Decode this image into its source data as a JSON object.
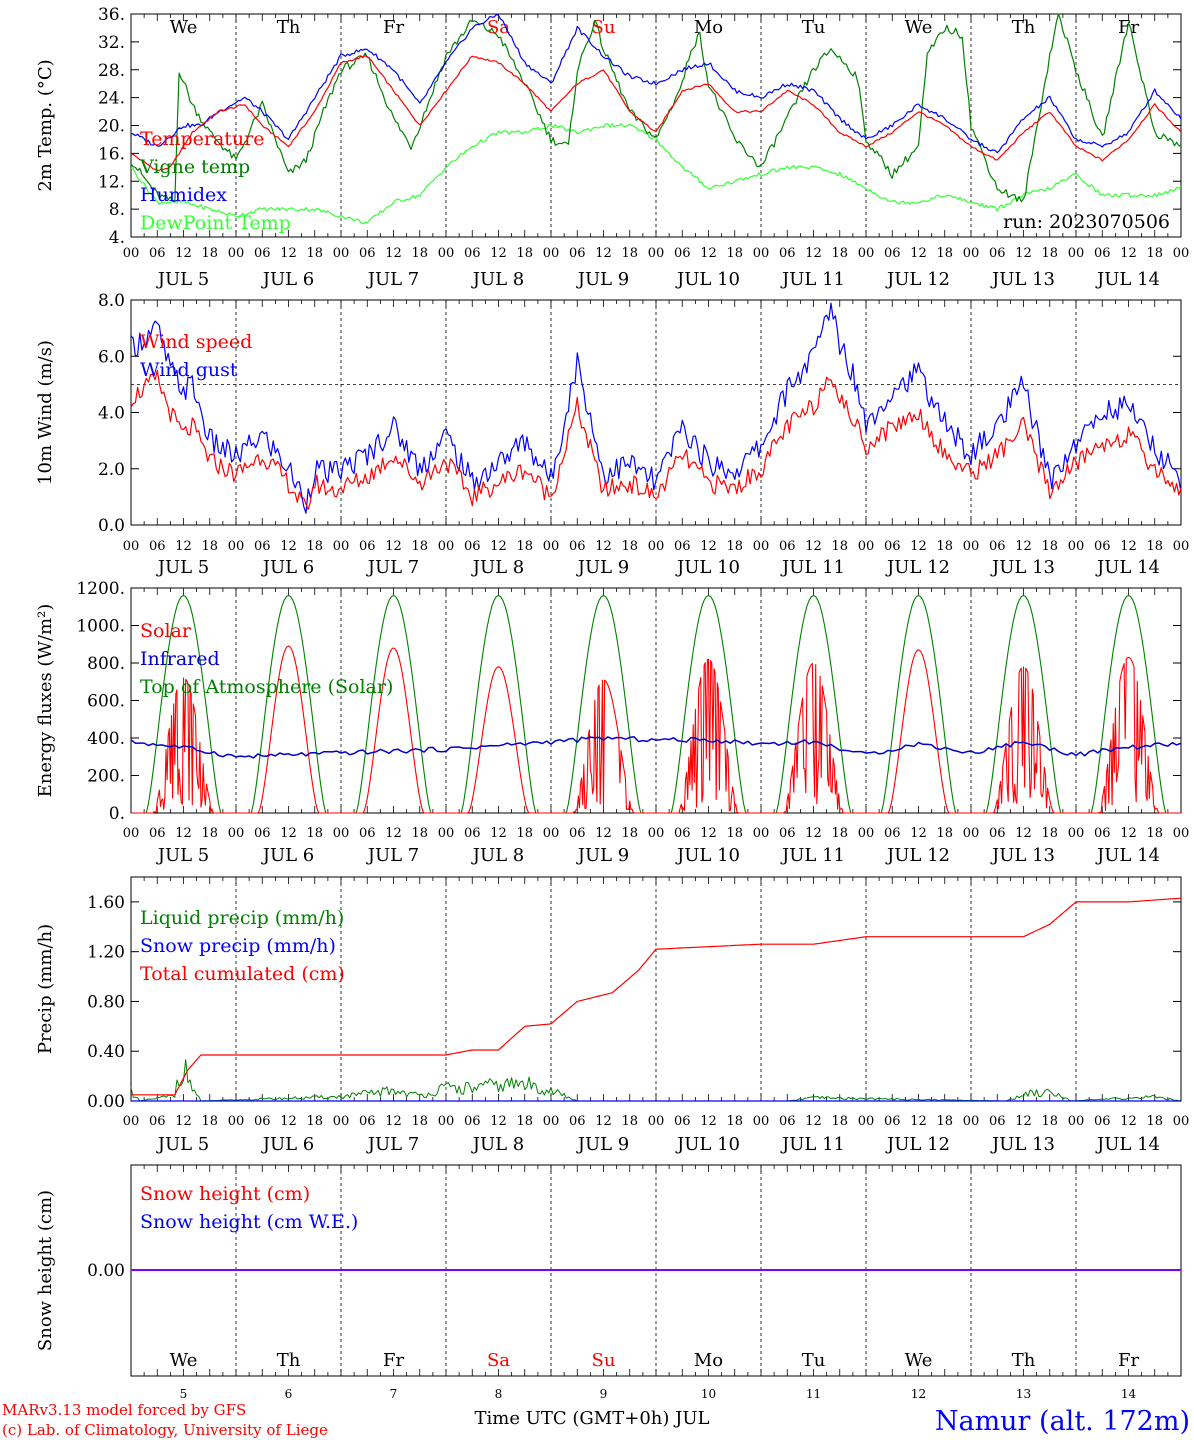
{
  "colors": {
    "red": "#ff0000",
    "green": "#00aa00",
    "darkgreen": "#008000",
    "lightgreen": "#33ff33",
    "blue": "#0000ff",
    "navy": "#0000cc",
    "purple": "#7f00ff",
    "black": "#000000"
  },
  "time_axis": {
    "hour_labels": [
      "00",
      "06",
      "12",
      "18"
    ],
    "final_hour": "00",
    "date_labels": [
      "JUL  5",
      "JUL  6",
      "JUL  7",
      "JUL  8",
      "JUL  9",
      "JUL 10",
      "JUL 11",
      "JUL 12",
      "JUL 13",
      "JUL 14"
    ],
    "weekdays": [
      "We",
      "Th",
      "Fr",
      "Sa",
      "Su",
      "Mo",
      "Tu",
      "We",
      "Th",
      "Fr"
    ],
    "weekend_days": [
      "Sa",
      "Su"
    ],
    "day_numbers": [
      "5",
      "6",
      "7",
      "8",
      "9",
      "10",
      "11",
      "12",
      "13",
      "14"
    ],
    "xlabel": "Time UTC (GMT+0h) JUL"
  },
  "footer": {
    "credit_line1": "MARv3.13 model forced by GFS",
    "credit_line2": "(c) Lab. of Climatology, University of Liege",
    "station": "Namur (alt. 172m)"
  },
  "chart_data": [
    {
      "type": "line",
      "ylabel": "2m Temp. (°C)",
      "ylim": [
        4,
        36
      ],
      "yticks": [
        "4.",
        "8.",
        "12.",
        "16.",
        "20.",
        "24.",
        "28.",
        "32.",
        "36."
      ],
      "run_label": "run: 2023070506",
      "x_unit": "hours from JUL 5 00 UTC",
      "series": [
        {
          "name": "Temperature",
          "color": "#ff0000",
          "x": [
            0,
            6,
            9,
            14,
            20,
            26,
            30,
            36,
            42,
            48,
            54,
            60,
            66,
            72,
            78,
            84,
            90,
            96,
            102,
            108,
            114,
            120,
            126,
            132,
            138,
            144,
            150,
            156,
            162,
            168,
            174,
            180,
            186,
            192,
            198,
            204,
            210,
            216,
            222,
            228,
            234,
            240
          ],
          "y": [
            16,
            13.5,
            14,
            19,
            22,
            23,
            20,
            17,
            22,
            29,
            30,
            25,
            20,
            25,
            30,
            29,
            26,
            22,
            26,
            28,
            22,
            19,
            25,
            26,
            22,
            22,
            25,
            23,
            19,
            17,
            19,
            22,
            20,
            17,
            15,
            19,
            22,
            17,
            15,
            18,
            23,
            19
          ]
        },
        {
          "name": "Vigne temp",
          "color": "#008000",
          "x": [
            0,
            6,
            10,
            11,
            14,
            18,
            24,
            30,
            36,
            40,
            44,
            48,
            54,
            60,
            64,
            66,
            72,
            78,
            84,
            90,
            96,
            100,
            102,
            106,
            108,
            114,
            120,
            126,
            128,
            130,
            132,
            138,
            144,
            150,
            156,
            160,
            166,
            168,
            174,
            180,
            182,
            186,
            190,
            192,
            198,
            204,
            210,
            212,
            216,
            222,
            228,
            234,
            240
          ],
          "y": [
            15,
            10,
            9,
            28,
            23,
            19,
            15,
            23,
            13,
            15,
            22,
            28,
            30,
            21,
            17,
            20,
            30,
            35,
            33,
            26,
            18,
            17,
            28,
            35,
            31,
            22,
            18,
            26,
            31,
            33,
            26,
            18,
            14,
            21,
            28,
            31,
            27,
            18,
            13,
            17,
            30,
            34,
            33,
            20,
            11,
            9,
            30,
            36,
            28,
            18,
            35,
            19,
            17
          ]
        },
        {
          "name": "Humidex",
          "color": "#0000ff",
          "x": [
            0,
            6,
            12,
            16,
            20,
            26,
            30,
            36,
            42,
            48,
            54,
            60,
            66,
            72,
            78,
            84,
            90,
            96,
            102,
            108,
            114,
            120,
            126,
            132,
            138,
            144,
            150,
            156,
            162,
            168,
            174,
            180,
            186,
            192,
            198,
            204,
            210,
            216,
            222,
            228,
            234,
            240
          ],
          "y": [
            19,
            17,
            20,
            20,
            22,
            24,
            22,
            18,
            24,
            30,
            31,
            28,
            23,
            29,
            34,
            36,
            29,
            26,
            34,
            30,
            27,
            26,
            28,
            29,
            25,
            24,
            26,
            25,
            21,
            18,
            20,
            23,
            21,
            18,
            16,
            21,
            24,
            18,
            17,
            19,
            25,
            21
          ]
        },
        {
          "name": "DewPoint Temp",
          "color": "#33ff33",
          "x": [
            0,
            6,
            12,
            18,
            24,
            30,
            36,
            42,
            48,
            54,
            60,
            66,
            72,
            78,
            84,
            90,
            96,
            102,
            108,
            114,
            120,
            126,
            132,
            138,
            144,
            150,
            156,
            162,
            168,
            174,
            180,
            186,
            192,
            198,
            204,
            210,
            216,
            222,
            228,
            234,
            240
          ],
          "y": [
            14,
            9,
            9,
            8,
            7,
            8,
            8,
            8,
            7,
            6,
            9,
            10,
            14,
            17,
            19,
            19,
            20,
            19,
            20,
            20,
            18,
            14,
            11,
            12,
            13,
            14,
            14,
            13,
            11,
            9,
            9,
            10,
            9,
            8,
            10,
            11,
            13,
            10,
            10,
            10,
            11
          ]
        }
      ]
    },
    {
      "type": "line",
      "ylabel": "10m Wind (m/s)",
      "ylim": [
        0,
        8
      ],
      "yticks": [
        "0.0",
        "2.0",
        "4.0",
        "6.0",
        "8.0"
      ],
      "reference_line": 5,
      "series": [
        {
          "name": "Wind speed",
          "color": "#ff0000",
          "x": [
            0,
            6,
            9,
            12,
            14,
            18,
            24,
            30,
            36,
            40,
            42,
            46,
            54,
            60,
            66,
            72,
            78,
            84,
            90,
            96,
            102,
            108,
            114,
            120,
            126,
            132,
            138,
            144,
            150,
            156,
            160,
            162,
            166,
            168,
            174,
            180,
            186,
            192,
            198,
            204,
            210,
            216,
            222,
            228,
            234,
            240
          ],
          "y": [
            4.5,
            5.2,
            4.0,
            3.2,
            3.5,
            2.3,
            1.8,
            2.5,
            1.5,
            0.5,
            1.5,
            1.2,
            1.7,
            2.5,
            1.5,
            2.3,
            1.0,
            1.5,
            2.0,
            1.0,
            4.2,
            1.2,
            1.5,
            1.0,
            2.5,
            1.5,
            1.3,
            2.0,
            3.5,
            4.2,
            5.5,
            4.5,
            3.5,
            2.8,
            3.5,
            4.0,
            2.5,
            1.8,
            2.5,
            3.5,
            1.2,
            2.2,
            2.9,
            3.2,
            2.0,
            1.2
          ]
        },
        {
          "name": "Wind gust",
          "color": "#0000ff",
          "x": [
            0,
            6,
            9,
            12,
            14,
            18,
            24,
            30,
            36,
            40,
            42,
            46,
            54,
            60,
            66,
            72,
            78,
            84,
            90,
            96,
            102,
            108,
            114,
            120,
            126,
            132,
            138,
            144,
            150,
            156,
            160,
            162,
            166,
            168,
            174,
            180,
            186,
            192,
            198,
            204,
            210,
            216,
            222,
            228,
            234,
            240
          ],
          "y": [
            6.3,
            7.0,
            5.5,
            4.8,
            5.0,
            3.0,
            2.4,
            3.2,
            2.0,
            0.8,
            2.0,
            1.8,
            2.5,
            3.5,
            2.0,
            3.2,
            1.5,
            2.2,
            3.0,
            1.6,
            5.8,
            1.8,
            2.2,
            1.5,
            3.5,
            2.2,
            1.9,
            2.8,
            4.8,
            6.0,
            7.8,
            6.5,
            5.0,
            3.6,
            4.8,
            5.4,
            3.6,
            2.5,
            3.5,
            5.0,
            1.6,
            2.9,
            4.0,
            4.3,
            2.7,
            1.6
          ]
        }
      ]
    },
    {
      "type": "line",
      "ylabel": "Energy fluxes (W/m²)",
      "ylim": [
        0,
        1200
      ],
      "yticks": [
        "0.",
        "200.",
        "400.",
        "600.",
        "800.",
        "1000.",
        "1200."
      ],
      "series": [
        {
          "name": "Solar",
          "color": "#ff0000",
          "day_peaks": [
            720,
            890,
            880,
            780,
            710,
            820,
            800,
            870,
            780,
            830
          ],
          "cloudy_days": [
            "JUL 5",
            "JUL 9",
            "JUL 10",
            "JUL 11",
            "JUL 13",
            "JUL 14"
          ]
        },
        {
          "name": "Infrared",
          "color": "#0000cc",
          "x": [
            0,
            12,
            24,
            36,
            48,
            60,
            72,
            84,
            96,
            108,
            120,
            132,
            144,
            156,
            168,
            180,
            192,
            204,
            216,
            228,
            240
          ],
          "y": [
            380,
            350,
            300,
            310,
            320,
            330,
            340,
            360,
            380,
            400,
            390,
            390,
            370,
            380,
            310,
            370,
            320,
            380,
            310,
            350,
            370
          ]
        },
        {
          "name": "Top of Atmosphere (Solar)",
          "color": "#008000",
          "peak": 1160
        }
      ]
    },
    {
      "type": "line",
      "ylabel": "Precip (mm/h)",
      "ylim": [
        0,
        1.8
      ],
      "yticks": [
        "0.00",
        "0.40",
        "0.80",
        "1.20",
        "1.60"
      ],
      "series": [
        {
          "name": "Liquid precip (mm/h)",
          "color": "#008000",
          "x": [
            0,
            1,
            2,
            10,
            11,
            13,
            14,
            16,
            48,
            54,
            60,
            66,
            72,
            78,
            84,
            90,
            96,
            102,
            120,
            150,
            156,
            200,
            204,
            210,
            215,
            234,
            240
          ],
          "y": [
            0.1,
            0.05,
            0,
            0.05,
            0.3,
            0.25,
            0.12,
            0,
            0.04,
            0.07,
            0.1,
            0.05,
            0.12,
            0.12,
            0.15,
            0.16,
            0.1,
            0,
            0,
            0,
            0.03,
            0,
            0.06,
            0.1,
            0,
            0.04,
            0
          ]
        },
        {
          "name": "Snow precip (mm/h)",
          "color": "#0000ff",
          "x": [
            0,
            240
          ],
          "y": [
            0,
            0
          ]
        },
        {
          "name": "Total cumulated (cm)",
          "color": "#ff0000",
          "x": [
            0,
            10,
            13,
            16,
            24,
            48,
            72,
            78,
            84,
            90,
            96,
            102,
            110,
            116,
            120,
            144,
            156,
            168,
            192,
            204,
            210,
            216,
            228,
            240
          ],
          "y": [
            0.05,
            0.05,
            0.25,
            0.37,
            0.37,
            0.37,
            0.37,
            0.41,
            0.41,
            0.6,
            0.62,
            0.8,
            0.87,
            1.05,
            1.22,
            1.26,
            1.26,
            1.32,
            1.32,
            1.32,
            1.42,
            1.6,
            1.6,
            1.63
          ]
        }
      ]
    },
    {
      "type": "line",
      "ylabel": "Snow height (cm)",
      "yticks": [
        "0.00"
      ],
      "series": [
        {
          "name": "Snow height (cm)",
          "color": "#ff0000",
          "x": [
            0,
            240
          ],
          "y": [
            0,
            0
          ]
        },
        {
          "name": "Snow height (cm W.E.)",
          "color": "#0000ff",
          "x": [
            0,
            240
          ],
          "y": [
            0,
            0
          ]
        }
      ]
    }
  ]
}
